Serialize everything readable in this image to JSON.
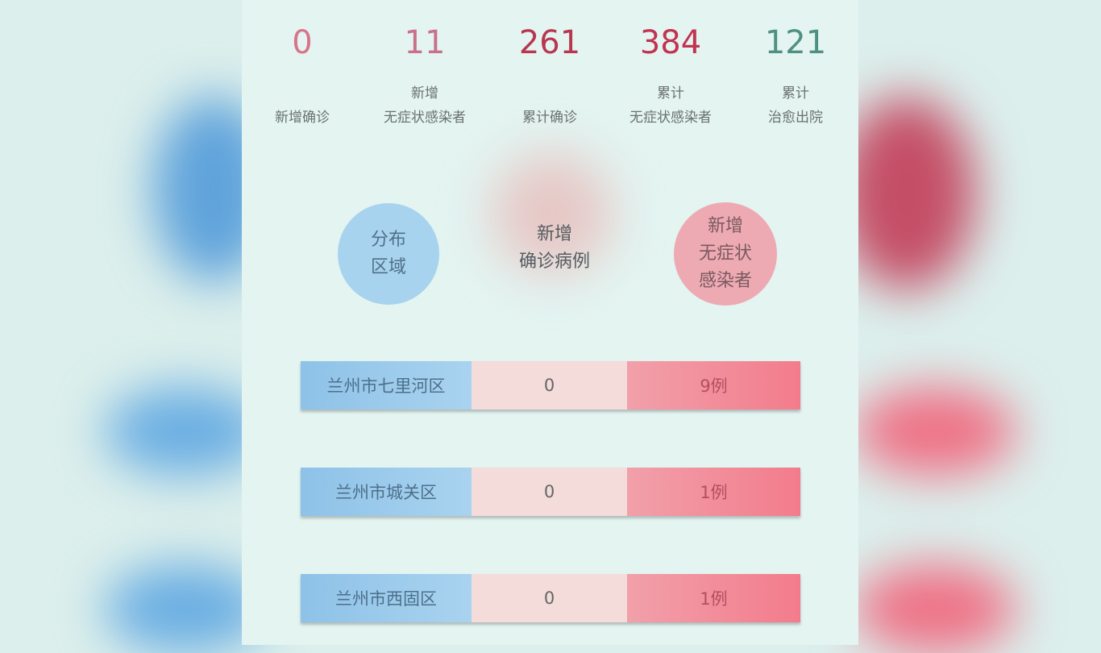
{
  "stats": [
    {
      "value": "0",
      "label_line1": "",
      "label_line2": "新增确诊",
      "color": "#d9738a"
    },
    {
      "value": "11",
      "label_line1": "新增",
      "label_line2": "无症状感染者",
      "color": "#c9708a"
    },
    {
      "value": "261",
      "label_line1": "",
      "label_line2": "累计确诊",
      "color": "#b8364f"
    },
    {
      "value": "384",
      "label_line1": "累计",
      "label_line2": "无症状感染者",
      "color": "#c23350"
    },
    {
      "value": "121",
      "label_line1": "累计",
      "label_line2": "治愈出院",
      "color": "#4f9080"
    }
  ],
  "headers": {
    "region": [
      "分布",
      "区域"
    ],
    "new_confirmed": [
      "新增",
      "确诊病例"
    ],
    "new_asymptomatic": [
      "新增",
      "无症状",
      "感染者"
    ]
  },
  "rows": [
    {
      "region": "兰州市七里河区",
      "confirmed": "0",
      "asymptomatic": "9例"
    },
    {
      "region": "兰州市城关区",
      "confirmed": "0",
      "asymptomatic": "1例"
    },
    {
      "region": "兰州市西固区",
      "confirmed": "0",
      "asymptomatic": "1例"
    }
  ]
}
